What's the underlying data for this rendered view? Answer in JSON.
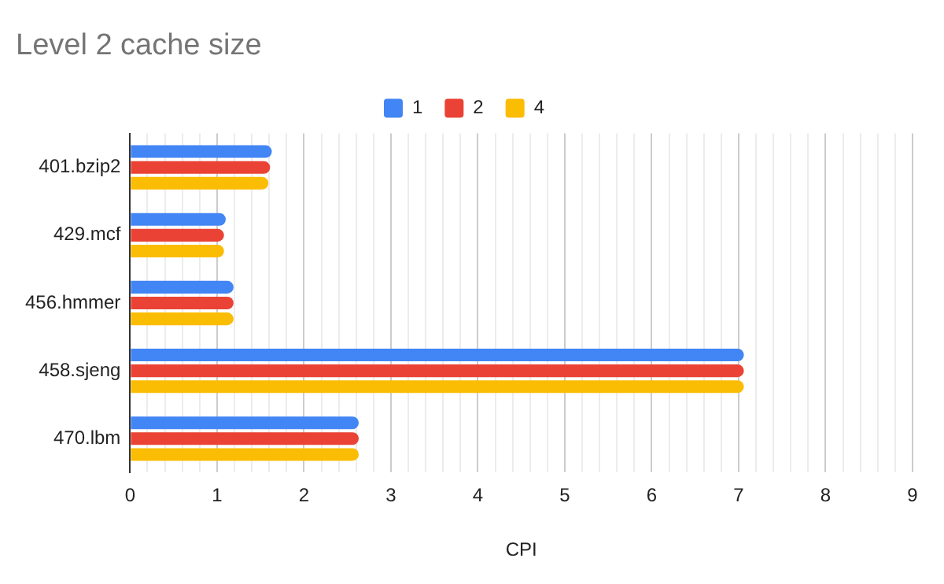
{
  "chart_data": {
    "type": "bar",
    "orientation": "horizontal",
    "title": "Level 2 cache size",
    "xlabel": "CPI",
    "categories": [
      "401.bzip2",
      "429.mcf",
      "456.hmmer",
      "458.sjeng",
      "470.lbm"
    ],
    "series": [
      {
        "name": "1",
        "color": "#4285f4",
        "values": [
          1.63,
          1.1,
          1.19,
          7.06,
          2.63
        ]
      },
      {
        "name": "2",
        "color": "#ea4335",
        "values": [
          1.61,
          1.08,
          1.19,
          7.06,
          2.63
        ]
      },
      {
        "name": "4",
        "color": "#fbbc04",
        "values": [
          1.59,
          1.08,
          1.19,
          7.06,
          2.63
        ]
      }
    ],
    "xlim": [
      0,
      9
    ],
    "xticks": [
      0,
      {
        "value": 0.2,
        "label": null
      },
      {
        "value": 0.4,
        "label": null
      },
      {
        "value": 0.6,
        "label": null
      },
      {
        "value": 0.8,
        "label": null
      },
      1,
      {
        "value": 1.2,
        "label": null
      },
      {
        "value": 1.4,
        "label": null
      },
      {
        "value": 1.6,
        "label": null
      },
      {
        "value": 1.8,
        "label": null
      },
      2,
      {
        "value": 2.2,
        "label": null
      },
      {
        "value": 2.4,
        "label": null
      },
      {
        "value": 2.6,
        "label": null
      },
      {
        "value": 2.8,
        "label": null
      },
      3,
      {
        "value": 3.2,
        "label": null
      },
      {
        "value": 3.4,
        "label": null
      },
      {
        "value": 3.6,
        "label": null
      },
      {
        "value": 3.8,
        "label": null
      },
      4,
      {
        "value": 4.2,
        "label": null
      },
      {
        "value": 4.4,
        "label": null
      },
      {
        "value": 4.6,
        "label": null
      },
      {
        "value": 4.8,
        "label": null
      },
      5,
      {
        "value": 5.2,
        "label": null
      },
      {
        "value": 5.4,
        "label": null
      },
      {
        "value": 5.6,
        "label": null
      },
      {
        "value": 5.8,
        "label": null
      },
      6,
      {
        "value": 6.2,
        "label": null
      },
      {
        "value": 6.4,
        "label": null
      },
      {
        "value": 6.6,
        "label": null
      },
      {
        "value": 6.8,
        "label": null
      },
      7,
      {
        "value": 7.2,
        "label": null
      },
      {
        "value": 7.4,
        "label": null
      },
      {
        "value": 7.6,
        "label": null
      },
      {
        "value": 7.8,
        "label": null
      },
      8,
      {
        "value": 8.2,
        "label": null
      },
      {
        "value": 8.4,
        "label": null
      },
      {
        "value": 8.6,
        "label": null
      },
      {
        "value": 8.8,
        "label": null
      },
      9
    ],
    "grid": "x",
    "legend": "top"
  }
}
